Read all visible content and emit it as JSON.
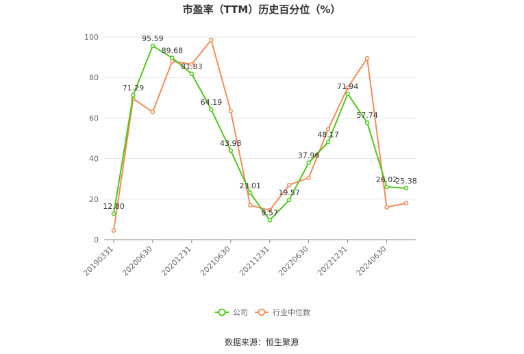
{
  "title": "市盈率（TTM）历史百分位（%）",
  "source": "数据来源：恒生聚源",
  "chart_data": {
    "type": "line",
    "title": "市盈率（TTM）历史百分位（%）",
    "ylim": [
      0,
      100
    ],
    "yticks": [
      0,
      20,
      40,
      60,
      80,
      100
    ],
    "xtick_labels": [
      "20190331",
      "20200630",
      "20201231",
      "20210630",
      "20211231",
      "20220630",
      "20221231",
      "20240630"
    ],
    "xtick_index": [
      0,
      2,
      4,
      6,
      8,
      10,
      12,
      14
    ],
    "grid": true,
    "legend_position": "bottom",
    "series": [
      {
        "name": "公司",
        "color": "#52c41a",
        "values": [
          12.8,
          71.29,
          95.59,
          89.68,
          81.83,
          64.19,
          43.98,
          23.01,
          9.57,
          19.57,
          37.96,
          48.17,
          71.94,
          57.74,
          26.02,
          25.38
        ],
        "labels": [
          "12.80",
          "71.29",
          "95.59",
          "89.68",
          "81.83",
          "64.19",
          "43.98",
          "23.01",
          "9.57",
          "19.57",
          "37.96",
          "48.17",
          "71.94",
          "57.74",
          "26.02",
          "25.38"
        ]
      },
      {
        "name": "行业中位数",
        "color": "#f28c5a",
        "values": [
          4.5,
          69.5,
          63.0,
          88.0,
          86.5,
          98.5,
          63.5,
          17.0,
          14.5,
          27.0,
          30.5,
          54.5,
          75.0,
          89.5,
          16.0,
          18.0
        ]
      }
    ]
  }
}
